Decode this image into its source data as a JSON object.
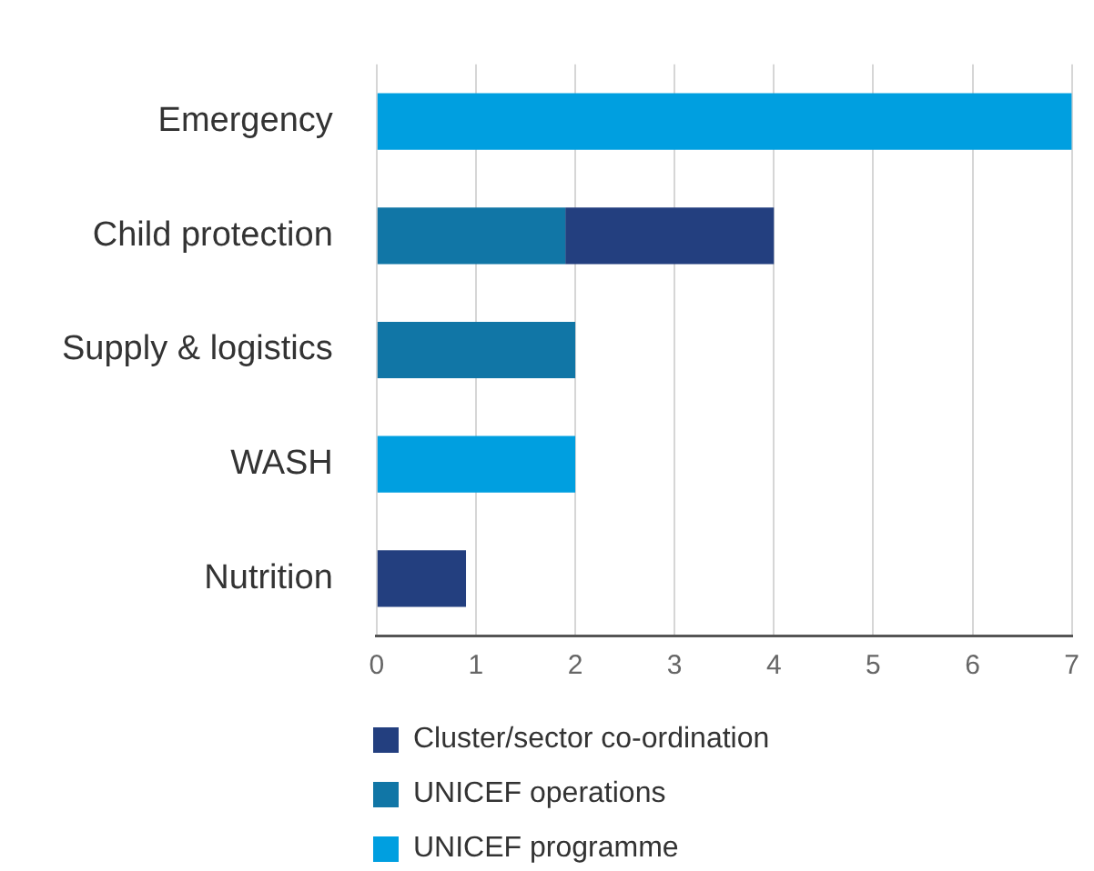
{
  "chart_data": {
    "type": "bar",
    "orientation": "horizontal",
    "stacked": true,
    "categories": [
      "Emergency",
      "Child protection",
      "Supply & logistics",
      "WASH",
      "Nutrition"
    ],
    "series": [
      {
        "name": "UNICEF programme",
        "color": "#009fe0",
        "values": [
          7.0,
          null,
          null,
          2.0,
          null
        ]
      },
      {
        "name": "UNICEF operations",
        "color": "#1176a6",
        "values": [
          null,
          1.9,
          2.0,
          null,
          null
        ]
      },
      {
        "name": "Cluster/sector co-ordination",
        "color": "#233f7f",
        "values": [
          null,
          2.1,
          null,
          null,
          0.9
        ]
      }
    ],
    "xlim": [
      0,
      7
    ],
    "xticks": [
      0,
      1,
      2,
      3,
      4,
      5,
      6,
      7
    ],
    "grid": "x",
    "legend": "bottom"
  }
}
